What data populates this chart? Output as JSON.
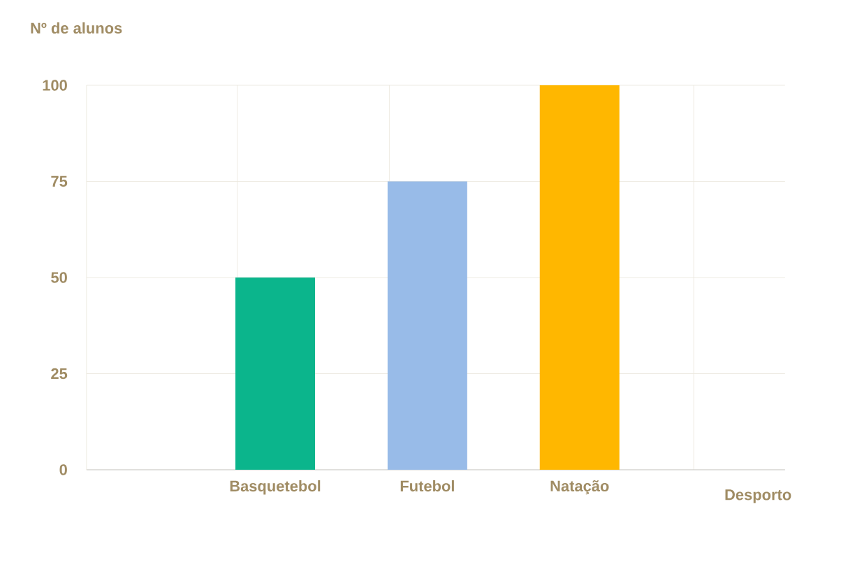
{
  "chart_data": {
    "type": "bar",
    "xlabel": "Desporto",
    "ylabel": "Nº de alunos",
    "categories": [
      "Basquetebol",
      "Futebol",
      "Natação"
    ],
    "values": [
      50,
      75,
      100
    ],
    "colors": [
      "#0bb58c",
      "#98bbe8",
      "#ffb700"
    ],
    "ylim": [
      0,
      100
    ],
    "yticks": [
      0,
      25,
      50,
      75,
      100
    ],
    "grid": true
  }
}
